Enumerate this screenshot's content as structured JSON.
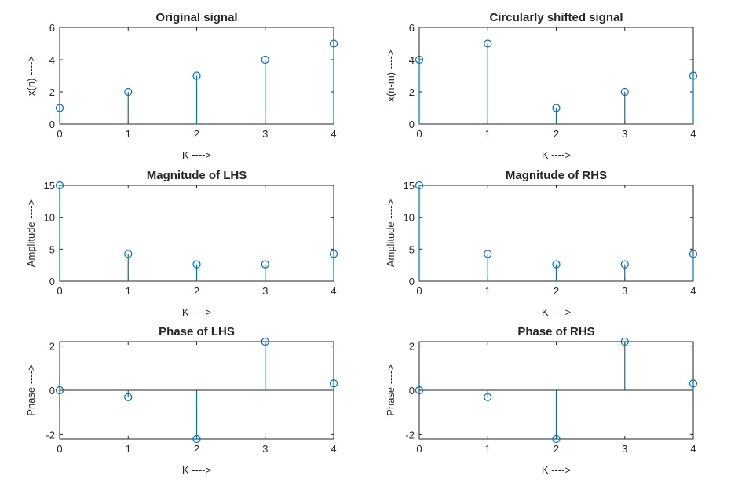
{
  "window_title": "",
  "colors": {
    "stem": "#0072bd",
    "axis": "#262626",
    "background": "#ffffff"
  },
  "chart_data": [
    {
      "type": "stem",
      "title": "Original signal",
      "xlabel": "K ---->",
      "ylabel": "x(n) ---->",
      "x": [
        0,
        1,
        2,
        3,
        4
      ],
      "values": [
        1,
        2,
        3,
        4,
        5
      ],
      "xlim": [
        0,
        4
      ],
      "ylim": [
        0,
        6
      ],
      "xticks": [
        0,
        1,
        2,
        3,
        4
      ],
      "yticks": [
        0,
        2,
        4,
        6
      ],
      "yticklabels": [
        "0",
        "2",
        "4",
        "6"
      ],
      "grid": false
    },
    {
      "type": "stem",
      "title": "Circularly shifted signal",
      "xlabel": "K ---->",
      "ylabel": "x(n-m) ---->",
      "x": [
        0,
        1,
        2,
        3,
        4
      ],
      "values": [
        4,
        5,
        1,
        2,
        3
      ],
      "xlim": [
        0,
        4
      ],
      "ylim": [
        0,
        6
      ],
      "xticks": [
        0,
        1,
        2,
        3,
        4
      ],
      "yticks": [
        0,
        2,
        4,
        6
      ],
      "yticklabels": [
        "0",
        "2",
        "4",
        "6"
      ],
      "grid": false
    },
    {
      "type": "stem",
      "title": "Magnitude of LHS",
      "xlabel": "K ---->",
      "ylabel": "Amplitude ---->",
      "x": [
        0,
        1,
        2,
        3,
        4
      ],
      "values": [
        15,
        4.25,
        2.63,
        2.63,
        4.25
      ],
      "xlim": [
        0,
        4
      ],
      "ylim": [
        0,
        15
      ],
      "xticks": [
        0,
        1,
        2,
        3,
        4
      ],
      "yticks": [
        0,
        5,
        10,
        15
      ],
      "yticklabels": [
        "0",
        "5",
        "10",
        "15"
      ],
      "grid": false
    },
    {
      "type": "stem",
      "title": "Magnitude of RHS",
      "xlabel": "K ---->",
      "ylabel": "Amplitude ---->",
      "x": [
        0,
        1,
        2,
        3,
        4
      ],
      "values": [
        15,
        4.25,
        2.63,
        2.63,
        4.25
      ],
      "xlim": [
        0,
        4
      ],
      "ylim": [
        0,
        15
      ],
      "xticks": [
        0,
        1,
        2,
        3,
        4
      ],
      "yticks": [
        0,
        5,
        10,
        15
      ],
      "yticklabels": [
        "0",
        "5",
        "10",
        "15"
      ],
      "grid": false
    },
    {
      "type": "stem",
      "title": "Phase of LHS",
      "xlabel": "K ---->",
      "ylabel": "Phase ---->",
      "x": [
        0,
        1,
        2,
        3,
        4
      ],
      "values": [
        0,
        -0.31,
        -2.2,
        2.2,
        0.31
      ],
      "xlim": [
        0,
        4
      ],
      "ylim": [
        -2.2,
        2.2
      ],
      "xticks": [
        0,
        1,
        2,
        3,
        4
      ],
      "yticks": [
        -2,
        0,
        2
      ],
      "yticklabels": [
        "-2",
        "0",
        "2"
      ],
      "zero_line": true,
      "grid": false
    },
    {
      "type": "stem",
      "title": "Phase of RHS",
      "xlabel": "K ---->",
      "ylabel": "Phase ---->",
      "x": [
        0,
        1,
        2,
        3,
        4
      ],
      "values": [
        0,
        -0.31,
        -2.2,
        2.2,
        0.31
      ],
      "xlim": [
        0,
        4
      ],
      "ylim": [
        -2.2,
        2.2
      ],
      "xticks": [
        0,
        1,
        2,
        3,
        4
      ],
      "yticks": [
        -2,
        0,
        2
      ],
      "yticklabels": [
        "-2",
        "0",
        "2"
      ],
      "zero_line": true,
      "grid": false
    }
  ]
}
